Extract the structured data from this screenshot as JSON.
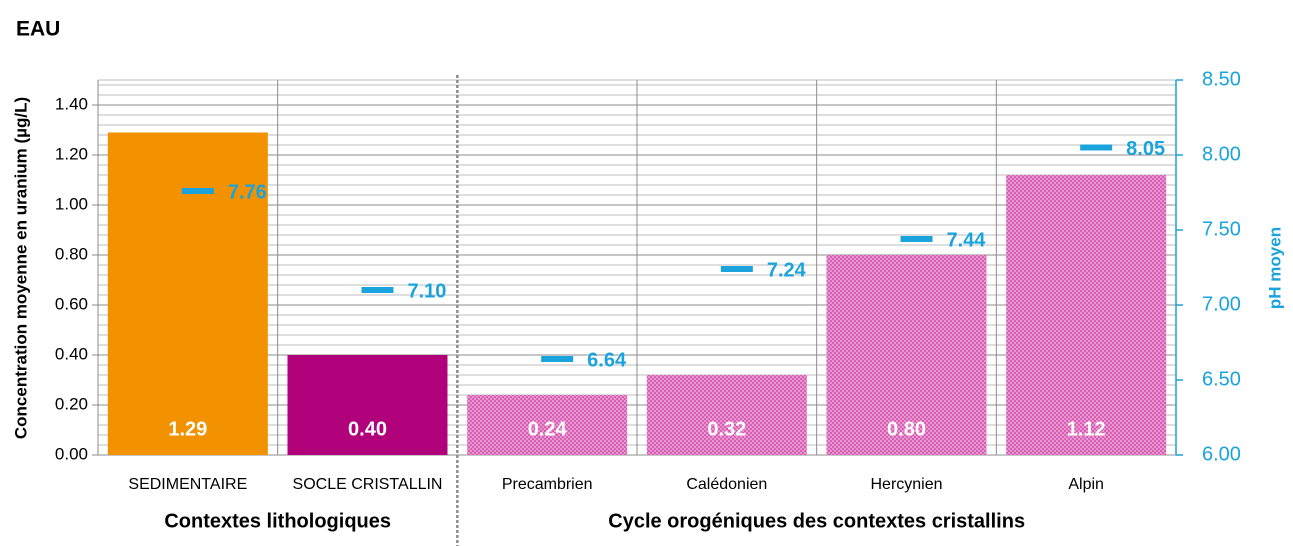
{
  "chart_data": {
    "type": "bar",
    "title": "EAU",
    "ylabel": "Concentration moyenne en uranium (µg/L)",
    "y2label": "pH moyen",
    "x_group_labels": [
      "Contextes lithologiques",
      "Cycle orogéniques des contextes cristallins"
    ],
    "categories": [
      "SEDIMENTAIRE",
      "SOCLE CRISTALLIN",
      "Precambrien",
      "Calédonien",
      "Hercynien",
      "Alpin"
    ],
    "series": [
      {
        "name": "Concentration moyenne en uranium",
        "values": [
          1.29,
          0.4,
          0.24,
          0.32,
          0.8,
          1.12
        ],
        "value_labels": [
          "1.29",
          "0.40",
          "0.24",
          "0.32",
          "0.80",
          "1.12"
        ],
        "colors": [
          "#f39200",
          "#b0007a",
          "#d95fb5",
          "#d95fb5",
          "#d95fb5",
          "#d95fb5"
        ],
        "hatched": [
          false,
          false,
          true,
          true,
          true,
          true
        ]
      },
      {
        "name": "pH moyen",
        "axis": "y2",
        "color": "#1aa3dc",
        "values": [
          7.76,
          7.1,
          6.64,
          7.24,
          7.44,
          8.05
        ],
        "value_labels": [
          "7.76",
          "7.10",
          "6.64",
          "7.24",
          "7.44",
          "8.05"
        ]
      }
    ],
    "ylim": [
      0,
      1.5
    ],
    "yticks": [
      {
        "value": 0,
        "label": "0.00"
      },
      {
        "value": 0.2,
        "label": "0.20"
      },
      {
        "value": 0.4,
        "label": "0.40"
      },
      {
        "value": 0.6,
        "label": "0.60"
      },
      {
        "value": 0.8,
        "label": "0.80"
      },
      {
        "value": 1.0,
        "label": "1.00"
      },
      {
        "value": 1.2,
        "label": "1.20"
      },
      {
        "value": 1.4,
        "label": "1.40"
      }
    ],
    "y2lim": [
      6,
      8.5
    ],
    "y2ticks": [
      {
        "value": 6,
        "label": "6.00"
      },
      {
        "value": 6.5,
        "label": "6.50"
      },
      {
        "value": 7,
        "label": "7.00"
      },
      {
        "value": 7.5,
        "label": "7.50"
      },
      {
        "value": 8,
        "label": "8.00"
      },
      {
        "value": 8.5,
        "label": "8.50"
      }
    ],
    "grid": true
  }
}
